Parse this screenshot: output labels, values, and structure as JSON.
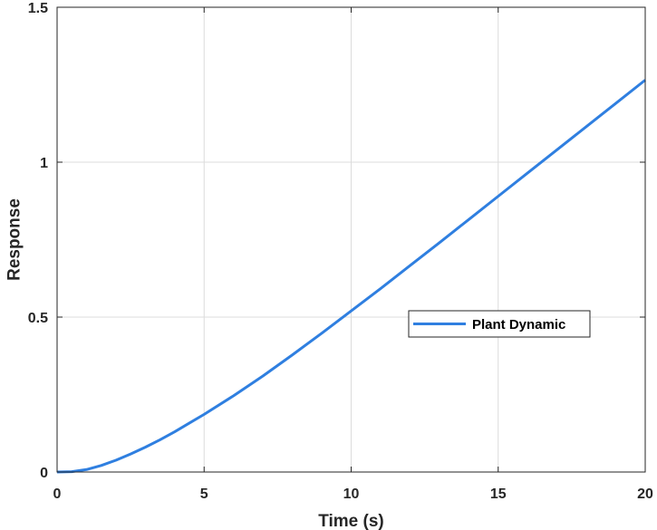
{
  "chart_data": {
    "type": "line",
    "title": "",
    "xlabel": "Time (s)",
    "ylabel": "Response",
    "xlim": [
      0,
      20
    ],
    "ylim": [
      0,
      1.5
    ],
    "xticks": [
      0,
      5,
      10,
      15,
      20
    ],
    "xtick_labels": [
      "0",
      "5",
      "10",
      "15",
      "20"
    ],
    "yticks": [
      0,
      0.5,
      1,
      1.5
    ],
    "ytick_labels": [
      "0",
      "0.5",
      "1",
      "1.5"
    ],
    "grid": true,
    "legend": {
      "position": "center-right",
      "entries": [
        "Plant Dynamic"
      ]
    },
    "series": [
      {
        "name": "Plant Dynamic",
        "color": "#2f7fe0",
        "x": [
          0,
          0.5,
          1,
          1.5,
          2,
          2.5,
          3,
          3.5,
          4,
          4.5,
          5,
          6,
          7,
          8,
          9,
          10,
          11,
          12,
          13,
          14,
          15,
          16,
          17,
          18,
          19,
          20
        ],
        "y": [
          0,
          0.001,
          0.008,
          0.021,
          0.038,
          0.058,
          0.08,
          0.104,
          0.13,
          0.158,
          0.186,
          0.246,
          0.31,
          0.378,
          0.448,
          0.52,
          0.592,
          0.666,
          0.74,
          0.815,
          0.89,
          0.965,
          1.04,
          1.115,
          1.19,
          1.265
        ]
      }
    ]
  }
}
